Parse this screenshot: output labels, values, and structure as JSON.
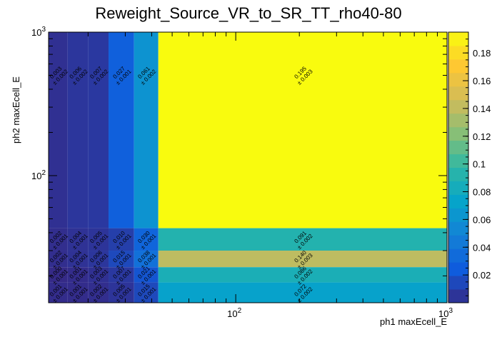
{
  "chart_data": {
    "type": "heatmap",
    "title": "Reweight_Source_VR_to_SR_TT_rho40-80",
    "xlabel": "ph1 maxEcell_E",
    "ylabel": "ph2 maxEcell_E",
    "x_scale": "log",
    "y_scale": "log",
    "xlim": [
      13,
      1000
    ],
    "ylim": [
      13,
      1000
    ],
    "x_tick_labels": [
      {
        "value": 100,
        "base": "10",
        "exp": "2"
      },
      {
        "value": 1000,
        "base": "10",
        "exp": "3"
      }
    ],
    "y_tick_labels": [
      {
        "value": 100,
        "base": "10",
        "exp": "2"
      },
      {
        "value": 1000,
        "base": "10",
        "exp": "3"
      }
    ],
    "colorbar": {
      "min": 0,
      "max": 0.195,
      "ticks": [
        "0.02",
        "0.04",
        "0.06",
        "0.08",
        "0.1",
        "0.12",
        "0.14",
        "0.16",
        "0.18"
      ],
      "tick_values": [
        0.02,
        0.04,
        0.06,
        0.08,
        0.1,
        0.12,
        0.14,
        0.16,
        0.18
      ],
      "colors": [
        "#352a87",
        "#0f5cdd",
        "#1481d6",
        "#06a4ca",
        "#2eb7a4",
        "#87bf77",
        "#d1bb59",
        "#fec832",
        "#f9fb0e"
      ]
    },
    "x_bin_edges": [
      13,
      16,
      20,
      25,
      33,
      43,
      1000
    ],
    "y_bin_edges": [
      13,
      18,
      23,
      30,
      43,
      1000
    ],
    "cells": [
      {
        "xi": 0,
        "yi": 4,
        "value": 0.003,
        "error": 0.002,
        "text": "0.003",
        "err_text": "± 0.002"
      },
      {
        "xi": 1,
        "yi": 4,
        "value": 0.006,
        "error": 0.002,
        "text": "0.006",
        "err_text": "± 0.002"
      },
      {
        "xi": 2,
        "yi": 4,
        "value": 0.007,
        "error": 0.002,
        "text": "0.007",
        "err_text": "± 0.002"
      },
      {
        "xi": 3,
        "yi": 4,
        "value": 0.027,
        "error": 0.001,
        "text": "0.027",
        "err_text": "± 0.001"
      },
      {
        "xi": 4,
        "yi": 4,
        "value": 0.061,
        "error": 0.002,
        "text": "0.061",
        "err_text": "± 0.002"
      },
      {
        "xi": 5,
        "yi": 4,
        "value": 0.195,
        "error": 0.003,
        "text": "0.195",
        "err_text": "± 0.003"
      },
      {
        "xi": 0,
        "yi": 3,
        "value": 0.002,
        "error": 0.001,
        "text": "0.002",
        "err_text": "± 0.001"
      },
      {
        "xi": 1,
        "yi": 3,
        "value": 0.004,
        "error": 0.001,
        "text": "0.004",
        "err_text": "± 0.001"
      },
      {
        "xi": 2,
        "yi": 3,
        "value": 0.005,
        "error": 0.001,
        "text": "0.005",
        "err_text": "± 0.001"
      },
      {
        "xi": 3,
        "yi": 3,
        "value": 0.01,
        "error": 0.001,
        "text": "0.010",
        "err_text": "± 0.001"
      },
      {
        "xi": 4,
        "yi": 3,
        "value": 0.03,
        "error": 0.001,
        "text": "0.030",
        "err_text": "± 0.001"
      },
      {
        "xi": 5,
        "yi": 3,
        "value": 0.091,
        "error": 0.002,
        "text": "0.091",
        "err_text": "± 0.002"
      },
      {
        "xi": 0,
        "yi": 2,
        "value": 0.002,
        "error": 0.001,
        "text": "0.002",
        "err_text": "± 0.001"
      },
      {
        "xi": 1,
        "yi": 2,
        "value": 0.004,
        "error": 0.001,
        "text": "0.004",
        "err_text": "± 0.001"
      },
      {
        "xi": 2,
        "yi": 2,
        "value": 0.006,
        "error": 0.001,
        "text": "0.006",
        "err_text": "± 0.001"
      },
      {
        "xi": 3,
        "yi": 2,
        "value": 0.015,
        "error": 0.001,
        "text": "0.015",
        "err_text": "± 0.001"
      },
      {
        "xi": 4,
        "yi": 2,
        "value": 0.038,
        "error": 0.001,
        "text": "0.038",
        "err_text": "± 0.001"
      },
      {
        "xi": 5,
        "yi": 2,
        "value": 0.14,
        "error": 0.003,
        "text": "0.140",
        "err_text": "± 0.003"
      },
      {
        "xi": 0,
        "yi": 1,
        "value": 0.0,
        "error": 0.001,
        "text": "0.000",
        "err_text": "± 0.001"
      },
      {
        "xi": 1,
        "yi": 1,
        "value": 0.001,
        "error": 0.001,
        "text": "0.001",
        "err_text": "± 0.001"
      },
      {
        "xi": 2,
        "yi": 1,
        "value": 0.003,
        "error": 0.001,
        "text": "0.003",
        "err_text": "± 0.001"
      },
      {
        "xi": 3,
        "yi": 1,
        "value": 0.007,
        "error": 0.001,
        "text": "0.007",
        "err_text": "± 0.001"
      },
      {
        "xi": 4,
        "yi": 1,
        "value": 0.021,
        "error": 0.001,
        "text": "0.021",
        "err_text": "± 0.001"
      },
      {
        "xi": 5,
        "yi": 1,
        "value": 0.086,
        "error": 0.002,
        "text": "0.086",
        "err_text": "± 0.002"
      },
      {
        "xi": 0,
        "yi": 0,
        "value": 0.001,
        "error": 0.001,
        "text": "0.001",
        "err_text": "± 0.001"
      },
      {
        "xi": 1,
        "yi": 0,
        "value": 0.001,
        "error": 0.001,
        "text": "0.001",
        "err_text": "± 0.001"
      },
      {
        "xi": 2,
        "yi": 0,
        "value": 0.002,
        "error": 0.001,
        "text": "0.002",
        "err_text": "± 0.001"
      },
      {
        "xi": 3,
        "yi": 0,
        "value": 0.005,
        "error": 0.001,
        "text": "0.005",
        "err_text": "± 0.001"
      },
      {
        "xi": 4,
        "yi": 0,
        "value": 0.015,
        "error": 0.001,
        "text": "0.015",
        "err_text": "± 0.001"
      },
      {
        "xi": 5,
        "yi": 0,
        "value": 0.072,
        "error": 0.002,
        "text": "0.072",
        "err_text": "± 0.002"
      }
    ]
  }
}
